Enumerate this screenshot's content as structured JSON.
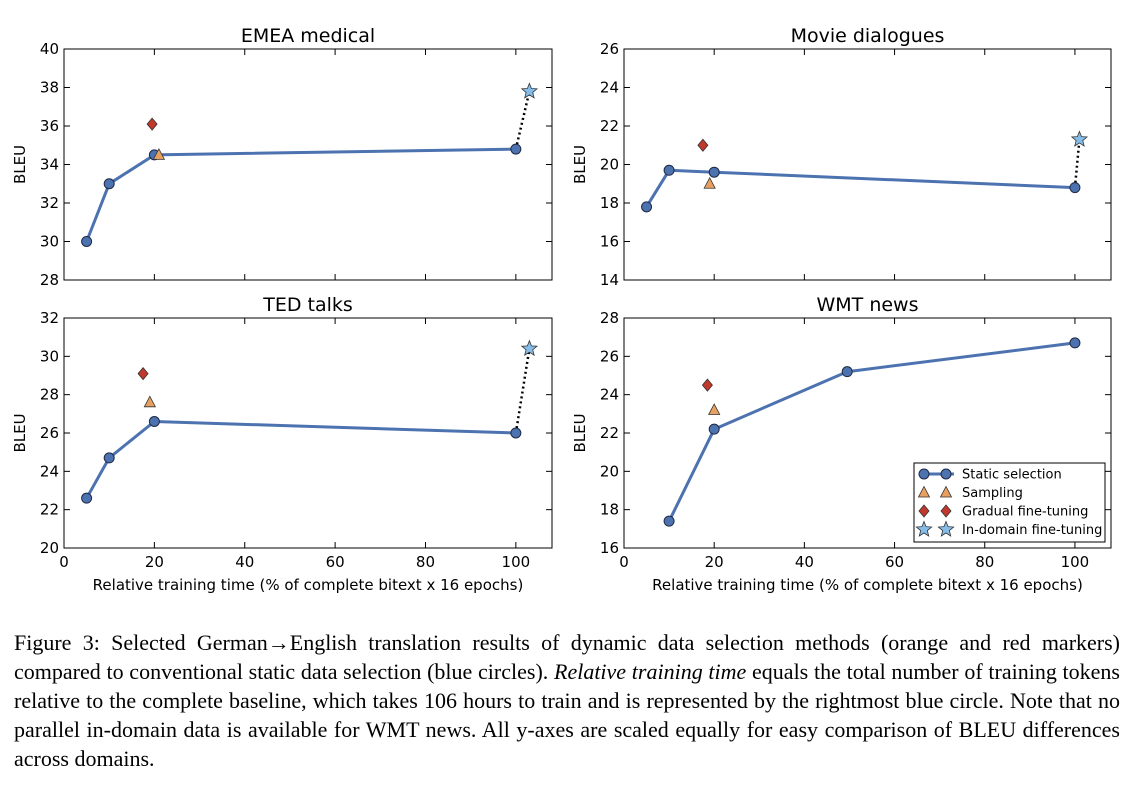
{
  "colors": {
    "static": "#4c72b0",
    "static_edge": "#1f2a44",
    "sampling": "#e8a060",
    "gradual": "#c0392b",
    "indomain": "#86bde8"
  },
  "legend": {
    "static": "Static selection",
    "sampling": "Sampling",
    "gradual": "Gradual fine-tuning",
    "indomain": "In-domain fine-tuning"
  },
  "chart_data": [
    {
      "type": "line",
      "title": "EMEA medical",
      "ylabel": "BLEU",
      "xlabel": "",
      "xlim": [
        0,
        108
      ],
      "ylim": [
        28,
        40
      ],
      "xticks": [],
      "yticks": [
        28,
        30,
        32,
        34,
        36,
        38,
        40
      ],
      "static": [
        [
          5,
          30.0
        ],
        [
          10,
          33.0
        ],
        [
          20,
          34.5
        ],
        [
          100,
          34.8
        ]
      ],
      "sampling": [
        [
          21,
          34.5
        ]
      ],
      "gradual": [
        [
          19.5,
          36.1
        ]
      ],
      "indomain": [
        [
          103,
          37.8
        ]
      ],
      "dotted": [
        [
          100,
          34.8
        ],
        [
          103,
          37.8
        ]
      ]
    },
    {
      "type": "line",
      "title": "Movie dialogues",
      "ylabel": "BLEU",
      "xlabel": "",
      "xlim": [
        0,
        108
      ],
      "ylim": [
        14,
        26
      ],
      "xticks": [],
      "yticks": [
        14,
        16,
        18,
        20,
        22,
        24,
        26
      ],
      "static": [
        [
          5,
          17.8
        ],
        [
          10,
          19.7
        ],
        [
          20,
          19.6
        ],
        [
          100,
          18.8
        ]
      ],
      "sampling": [
        [
          19,
          19.0
        ]
      ],
      "gradual": [
        [
          17.5,
          21.0
        ]
      ],
      "indomain": [
        [
          101,
          21.3
        ]
      ],
      "dotted": [
        [
          100,
          18.8
        ],
        [
          101,
          21.3
        ]
      ]
    },
    {
      "type": "line",
      "title": "TED talks",
      "ylabel": "BLEU",
      "xlabel": "Relative training time (% of complete bitext x 16 epochs)",
      "xlim": [
        0,
        108
      ],
      "ylim": [
        20,
        32
      ],
      "xticks": [
        0,
        20,
        40,
        60,
        80,
        100
      ],
      "yticks": [
        20,
        22,
        24,
        26,
        28,
        30,
        32
      ],
      "static": [
        [
          5,
          22.6
        ],
        [
          10,
          24.7
        ],
        [
          20,
          26.6
        ],
        [
          100,
          26.0
        ]
      ],
      "sampling": [
        [
          19,
          27.6
        ]
      ],
      "gradual": [
        [
          17.5,
          29.1
        ]
      ],
      "indomain": [
        [
          103,
          30.4
        ]
      ],
      "dotted": [
        [
          100,
          26.0
        ],
        [
          103,
          30.4
        ]
      ]
    },
    {
      "type": "line",
      "title": "WMT news",
      "ylabel": "BLEU",
      "xlabel": "Relative training time (% of complete bitext x 16 epochs)",
      "xlim": [
        0,
        108
      ],
      "ylim": [
        16,
        28
      ],
      "xticks": [
        0,
        20,
        40,
        60,
        80,
        100
      ],
      "yticks": [
        16,
        18,
        20,
        22,
        24,
        26,
        28
      ],
      "static": [
        [
          10,
          17.4
        ],
        [
          20,
          22.2
        ],
        [
          49.5,
          25.2
        ],
        [
          100,
          26.7
        ]
      ],
      "sampling": [
        [
          20,
          23.2
        ]
      ],
      "gradual": [
        [
          18.5,
          24.5
        ]
      ],
      "indomain": [],
      "dotted": [],
      "legend": true
    }
  ],
  "caption": {
    "p1": "Figure 3: Selected German→English translation results of dynamic data selection methods (orange and red markers) compared to conventional static data selection (blue circles). ",
    "italic": "Relative training time",
    "p2": " equals the total number of training tokens relative to the complete baseline, which takes 106 hours to train and is represented by the rightmost blue circle. Note that no parallel in-domain data is available for WMT news. All y-axes are scaled equally for easy comparison of BLEU differences across domains."
  }
}
